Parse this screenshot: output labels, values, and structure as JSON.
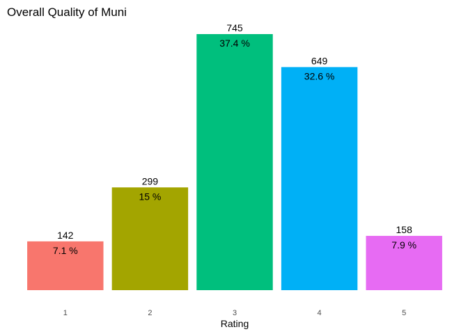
{
  "chart_data": {
    "type": "bar",
    "title": "Overall Quality of Muni",
    "xlabel": "Rating",
    "ylabel": "",
    "categories": [
      "1",
      "2",
      "3",
      "4",
      "5"
    ],
    "values": [
      142,
      299,
      745,
      649,
      158
    ],
    "percent_labels": [
      "7.1 %",
      "15 %",
      "37.4 %",
      "32.6 %",
      "7.9 %"
    ],
    "count_labels": [
      "142",
      "299",
      "745",
      "649",
      "158"
    ],
    "colors": [
      "#F8766D",
      "#A3A500",
      "#00BF7D",
      "#00B0F6",
      "#E76BF3"
    ],
    "ylim": [
      0,
      745
    ],
    "grid": false,
    "legend": "none"
  }
}
